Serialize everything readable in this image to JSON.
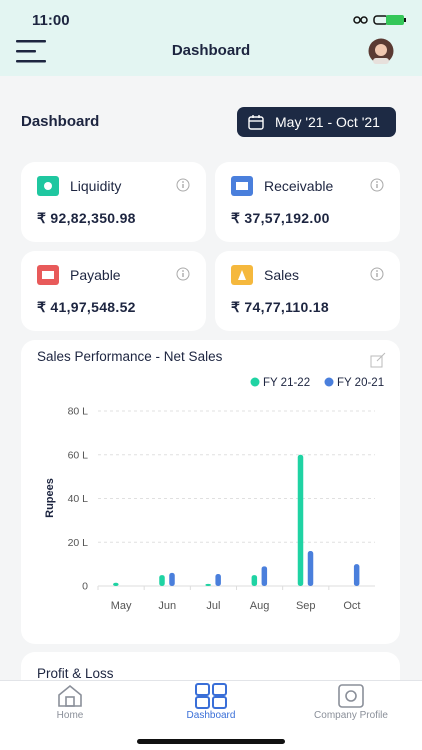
{
  "status_bar": {
    "time": "11:00"
  },
  "header": {
    "title": "Dashboard"
  },
  "page": {
    "title": "Dashboard",
    "date_range": "May '21 - Oct '21"
  },
  "cards": [
    {
      "label": "Liquidity",
      "value": "₹ 92,82,350.98"
    },
    {
      "label": "Receivable",
      "value": "₹ 37,57,192.00"
    },
    {
      "label": "Payable",
      "value": "₹ 41,97,548.52"
    },
    {
      "label": "Sales",
      "value": "₹ 74,77,110.18"
    }
  ],
  "chart_data": {
    "type": "bar",
    "title": "Sales Performance - Net Sales",
    "y_label": "Rupees",
    "categories": [
      "May",
      "Jun",
      "Jul",
      "Aug",
      "Sep",
      "Oct"
    ],
    "series": [
      {
        "name": "FY 21-22",
        "color": "#1fd3a3",
        "values": [
          1.5,
          5,
          1,
          5,
          60,
          null
        ]
      },
      {
        "name": "FY 20-21",
        "color": "#4a7fdc",
        "values": [
          null,
          6,
          5.5,
          9,
          16,
          10
        ]
      }
    ],
    "ylim": [
      0,
      80
    ],
    "yticks": [
      0,
      {
        "value": 20,
        "label": "20 L"
      },
      {
        "value": 40,
        "label": "40 L"
      },
      {
        "value": 60,
        "label": "60 L"
      },
      {
        "value": 80,
        "label": "80 L"
      }
    ],
    "grid": true,
    "legend": "top-right"
  },
  "next_card": {
    "title": "Profit & Loss"
  },
  "nav": [
    {
      "label": "Home"
    },
    {
      "label": "Dashboard"
    },
    {
      "label": "Company Profile"
    }
  ]
}
